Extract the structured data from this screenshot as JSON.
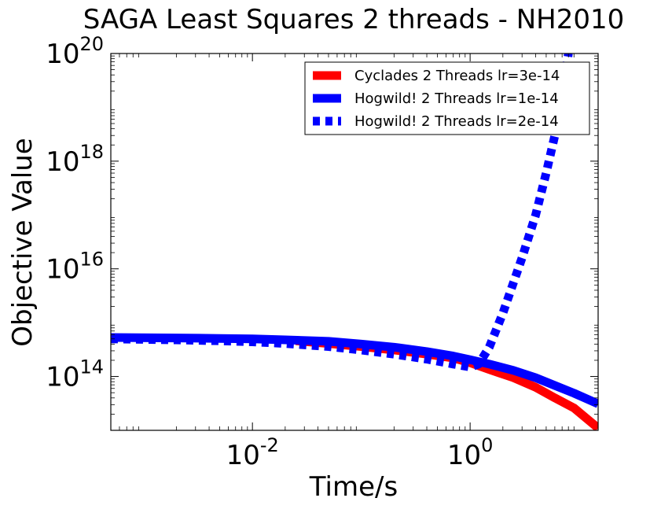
{
  "chart_data": {
    "type": "line",
    "title": "SAGA Least Squares 2 threads - NH2010",
    "xlabel": "Time/s",
    "ylabel": "Objective Value",
    "xscale": "log",
    "yscale": "log",
    "xlim": [
      0.0005,
      15
    ],
    "ylim": [
      10000000000000.0,
      1e+20
    ],
    "grid": false,
    "legend_position": "top-right",
    "x_ticks": [
      {
        "value": 0.01,
        "base": "10",
        "exp": "-2"
      },
      {
        "value": 1,
        "base": "10",
        "exp": "0"
      }
    ],
    "y_ticks": [
      {
        "value": 100000000000000.0,
        "base": "10",
        "exp": "14"
      },
      {
        "value": 1e+16,
        "base": "10",
        "exp": "16"
      },
      {
        "value": 1e+18,
        "base": "10",
        "exp": "18"
      },
      {
        "value": 1e+20,
        "base": "10",
        "exp": "20"
      }
    ],
    "series": [
      {
        "name": "Cyclades 2 Threads lr=3e-14",
        "color": "#ff0000",
        "style": "solid",
        "x": [
          0.025,
          0.05,
          0.1,
          0.2,
          0.4,
          0.7,
          1.0,
          1.5,
          2.5,
          4,
          6,
          9,
          15
        ],
        "y": [
          460000000000000.0,
          410000000000000.0,
          360000000000000.0,
          310000000000000.0,
          260000000000000.0,
          220000000000000.0,
          180000000000000.0,
          135000000000000.0,
          95000000000000.0,
          63000000000000.0,
          40000000000000.0,
          26000000000000.0,
          11000000000000.0
        ]
      },
      {
        "name": "Hogwild! 2 Threads lr=1e-14",
        "color": "#0000ff",
        "style": "solid",
        "x": [
          0.0005,
          0.002,
          0.005,
          0.01,
          0.02,
          0.05,
          0.1,
          0.2,
          0.4,
          0.7,
          1.0,
          1.5,
          2.5,
          4,
          6,
          9,
          15
        ],
        "y": [
          530000000000000.0,
          520000000000000.0,
          510000000000000.0,
          500000000000000.0,
          480000000000000.0,
          450000000000000.0,
          400000000000000.0,
          350000000000000.0,
          290000000000000.0,
          240000000000000.0,
          205000000000000.0,
          170000000000000.0,
          130000000000000.0,
          95000000000000.0,
          68000000000000.0,
          49000000000000.0,
          31000000000000.0
        ]
      },
      {
        "name": "Hogwild! 2 Threads lr=2e-14",
        "color": "#0000ff",
        "style": "dotted",
        "x": [
          0.0005,
          0.002,
          0.005,
          0.01,
          0.02,
          0.05,
          0.1,
          0.2,
          0.4,
          0.7,
          1.0,
          1.2,
          1.5,
          2.0,
          2.5,
          3.0,
          4.0,
          5.0,
          6.0,
          7.0,
          8.0
        ],
        "y": [
          500000000000000.0,
          480000000000000.0,
          460000000000000.0,
          440000000000000.0,
          410000000000000.0,
          360000000000000.0,
          310000000000000.0,
          260000000000000.0,
          210000000000000.0,
          170000000000000.0,
          150000000000000.0,
          170000000000000.0,
          350000000000000.0,
          1500000000000000.0,
          5500000000000000.0,
          1.6e+16,
          1e+17,
          6e+17,
          3e+18,
          1.6e+19,
          1e+20
        ]
      }
    ]
  }
}
